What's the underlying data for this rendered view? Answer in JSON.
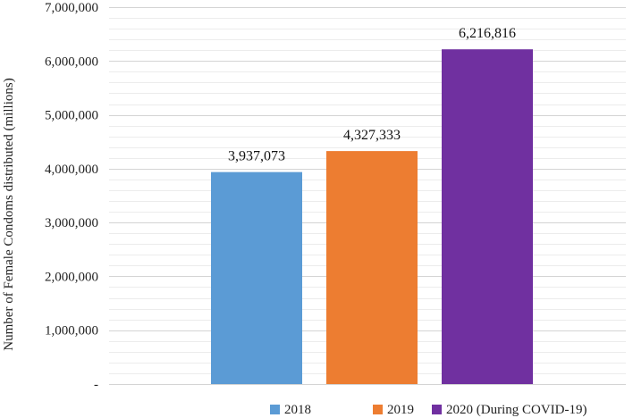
{
  "chart_data": {
    "type": "bar",
    "title": "",
    "xlabel": "",
    "ylabel": "Number of Female Condoms distributed (millions)",
    "ylim": [
      0,
      7000000
    ],
    "y_major_step": 1000000,
    "y_minor_step": 200000,
    "y_tick_labels": [
      "-",
      "1,000,000",
      "2,000,000",
      "3,000,000",
      "4,000,000",
      "5,000,000",
      "6,000,000",
      "7,000,000"
    ],
    "grid": true,
    "legend_position": "bottom",
    "categories": [
      "2018",
      "2019",
      "2020 (During COVID-19)"
    ],
    "values": [
      3937073,
      4327333,
      6216816
    ],
    "data_labels": [
      "3,937,073",
      "4,327,333",
      "6,216,816"
    ],
    "colors": [
      "#5b9bd5",
      "#ed7d31",
      "#7030a0"
    ],
    "legend": [
      "2018",
      "2019",
      "2020 (During COVID-19)"
    ]
  }
}
